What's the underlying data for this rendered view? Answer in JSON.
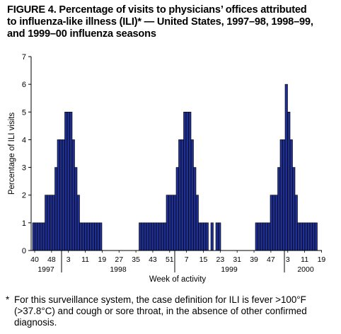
{
  "title_lines": [
    "FIGURE 4. Percentage of visits to physicians’ offices attributed",
    "to influenza-like illness (ILI)* — United States, 1997–98, 1998–99,",
    "and 1999–00 influenza seasons"
  ],
  "footnote": {
    "mark": "*",
    "lines": [
      "For this surveillance system, the case definition for ILI is fever >100°F",
      "(>37.8°C) and cough or sore throat, in the absence of other confirmed",
      "diagnosis."
    ]
  },
  "chart_data": {
    "type": "bar",
    "title": "",
    "xlabel": "Week of activity",
    "ylabel": "Percentage of ILI visits",
    "ylim": [
      0,
      7
    ],
    "yticks": [
      0,
      1,
      2,
      3,
      4,
      5,
      6,
      7
    ],
    "bar_color": "#1e2f8f",
    "x_tick_labels": [
      "40",
      "48",
      "3",
      "11",
      "19",
      "27",
      "35",
      "43",
      "51",
      "7",
      "15",
      "23",
      "31",
      "39",
      "47",
      "3",
      "11",
      "19"
    ],
    "year_labels": [
      "1997",
      "1998",
      "1999",
      "2000"
    ],
    "grid": false,
    "values": [
      1,
      1,
      1,
      1,
      1,
      2,
      2,
      2,
      2,
      3,
      4,
      4,
      4,
      5,
      5,
      5,
      4,
      3,
      2,
      1,
      1,
      1,
      1,
      1,
      1,
      1,
      1,
      1,
      0,
      0,
      0,
      0,
      0,
      0,
      0,
      0,
      0,
      0,
      0,
      0,
      0,
      0,
      0,
      1,
      1,
      1,
      1,
      1,
      1,
      1,
      1,
      1,
      1,
      1,
      2,
      2,
      2,
      2,
      3,
      4,
      4,
      5,
      5,
      5,
      4,
      3,
      2,
      1,
      1,
      1,
      1,
      0,
      1,
      0,
      1,
      1,
      0,
      0,
      0,
      0,
      0,
      0,
      0,
      0,
      0,
      0,
      0,
      0,
      0,
      0,
      1,
      1,
      1,
      1,
      1,
      1,
      2,
      2,
      2,
      3,
      4,
      4,
      6,
      5,
      4,
      3,
      2,
      1,
      1,
      1,
      1,
      1,
      1,
      1,
      1
    ]
  }
}
